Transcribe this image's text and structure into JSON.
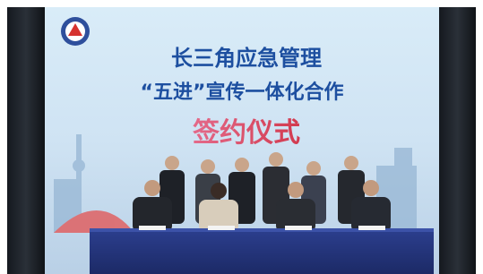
{
  "screen": {
    "title": "长三角应急管理",
    "subtitle": "“五进”宣传一体化合作",
    "ceremony": "签约仪式"
  }
}
